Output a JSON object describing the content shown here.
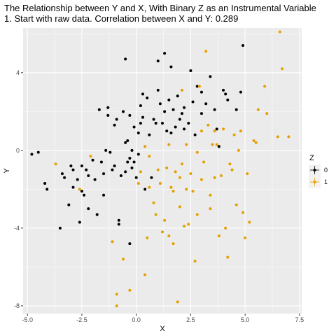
{
  "chart_data": {
    "type": "scatter",
    "title": "The Relationship between Y and X, With Binary Z as an Instrumental Variable",
    "subtitle": "1. Start with raw data. Correlation between X and Y: 0.289",
    "xlabel": "X",
    "ylabel": "Y",
    "xlim": [
      -5.2,
      7.6
    ],
    "ylim": [
      -8.4,
      6.3
    ],
    "x_ticks": [
      -5.0,
      -2.5,
      0.0,
      2.5,
      5.0,
      7.5
    ],
    "x_tick_labels": [
      "-5.0",
      "-2.5",
      "0.0",
      "2.5",
      "5.0",
      "7.5"
    ],
    "y_ticks": [
      -8,
      -4,
      0,
      4
    ],
    "y_tick_labels": [
      "-8",
      "-4",
      "0",
      "4"
    ],
    "grid": true,
    "legend": {
      "title": "Z",
      "position": "right"
    },
    "series": [
      {
        "name": "0",
        "color": "#000000",
        "points": [
          [
            -4.8,
            -0.2
          ],
          [
            -4.5,
            -0.1
          ],
          [
            -4.2,
            -1.7
          ],
          [
            -4.1,
            -2.0
          ],
          [
            -3.5,
            -4.0
          ],
          [
            -3.4,
            -1.2
          ],
          [
            -3.3,
            -1.4
          ],
          [
            -3.1,
            -2.8
          ],
          [
            -3.0,
            -0.8
          ],
          [
            -2.9,
            -1.0
          ],
          [
            -2.9,
            -1.9
          ],
          [
            -2.7,
            -1.5
          ],
          [
            -2.6,
            -3.7
          ],
          [
            -2.5,
            -0.8
          ],
          [
            -2.5,
            -2.1
          ],
          [
            -2.4,
            -2.3
          ],
          [
            -2.3,
            -1.0
          ],
          [
            -2.2,
            -1.3
          ],
          [
            -2.2,
            -3.0
          ],
          [
            -2.0,
            -0.5
          ],
          [
            -1.9,
            -1.5
          ],
          [
            -1.8,
            -3.3
          ],
          [
            -1.7,
            2.1
          ],
          [
            -1.6,
            -0.6
          ],
          [
            -1.5,
            -2.3
          ],
          [
            -1.5,
            -1.2
          ],
          [
            -1.4,
            0.0
          ],
          [
            -1.3,
            2.2
          ],
          [
            -1.3,
            1.8
          ],
          [
            -1.2,
            -0.1
          ],
          [
            -1.1,
            -1.0
          ],
          [
            -1.0,
            1.3
          ],
          [
            -1.0,
            -0.8
          ],
          [
            -0.9,
            1.6
          ],
          [
            -0.8,
            -3.6
          ],
          [
            -0.8,
            -3.8
          ],
          [
            -0.7,
            -1.3
          ],
          [
            -0.6,
            2.0
          ],
          [
            -0.5,
            4.7
          ],
          [
            -0.5,
            0.4
          ],
          [
            -0.5,
            -1.1
          ],
          [
            -0.4,
            0.5
          ],
          [
            -0.4,
            -0.6
          ],
          [
            -0.3,
            1.8
          ],
          [
            -0.3,
            -0.4
          ],
          [
            -0.3,
            -4.8
          ],
          [
            -0.2,
            0.0
          ],
          [
            -0.2,
            -0.9
          ],
          [
            -0.1,
            1.2
          ],
          [
            -0.1,
            -0.6
          ],
          [
            0.0,
            -1.4
          ],
          [
            0.1,
            0.9
          ],
          [
            0.1,
            -0.2
          ],
          [
            0.2,
            1.4
          ],
          [
            0.2,
            2.3
          ],
          [
            0.3,
            1.7
          ],
          [
            0.3,
            2.9
          ],
          [
            0.4,
            -2.0
          ],
          [
            0.5,
            2.7
          ],
          [
            0.6,
            0.8
          ],
          [
            0.7,
            -1.4
          ],
          [
            0.8,
            1.6
          ],
          [
            0.9,
            1.4
          ],
          [
            1.0,
            3.1
          ],
          [
            1.0,
            4.6
          ],
          [
            1.1,
            2.4
          ],
          [
            1.2,
            1.4
          ],
          [
            1.3,
            2.0
          ],
          [
            1.3,
            5.0
          ],
          [
            1.4,
            1.0
          ],
          [
            1.5,
            2.6
          ],
          [
            1.6,
            0.9
          ],
          [
            1.6,
            4.3
          ],
          [
            1.7,
            2.1
          ],
          [
            1.8,
            1.2
          ],
          [
            1.9,
            2.8
          ],
          [
            2.0,
            1.6
          ],
          [
            2.1,
            1.9
          ],
          [
            2.2,
            2.2
          ],
          [
            2.2,
            1.1
          ],
          [
            2.4,
            1.4
          ],
          [
            2.5,
            4.1
          ],
          [
            2.6,
            2.5
          ],
          [
            2.7,
            0.8
          ],
          [
            2.8,
            3.3
          ],
          [
            3.0,
            1.9
          ],
          [
            3.2,
            2.4
          ],
          [
            3.4,
            3.8
          ],
          [
            3.6,
            2.1
          ],
          [
            3.7,
            1.1
          ],
          [
            3.8,
            0.2
          ],
          [
            4.0,
            3.1
          ],
          [
            4.2,
            2.6
          ],
          [
            4.6,
            2.1
          ],
          [
            4.8,
            3.0
          ],
          [
            4.9,
            5.4
          ],
          [
            4.1,
            2.9
          ],
          [
            3.0,
            3.0
          ]
        ]
      },
      {
        "name": "1",
        "color": "#E69F00",
        "points": [
          [
            -3.7,
            -0.7
          ],
          [
            -2.6,
            -2.0
          ],
          [
            -2.1,
            -0.3
          ],
          [
            -1.1,
            -4.7
          ],
          [
            -0.9,
            -7.4
          ],
          [
            -0.9,
            -8.0
          ],
          [
            -0.6,
            -5.6
          ],
          [
            -0.3,
            -7.2
          ],
          [
            0.1,
            -1.7
          ],
          [
            0.2,
            -1.1
          ],
          [
            0.4,
            -6.4
          ],
          [
            0.4,
            0.2
          ],
          [
            0.5,
            -4.5
          ],
          [
            0.6,
            -0.3
          ],
          [
            0.6,
            -1.9
          ],
          [
            0.8,
            -2.7
          ],
          [
            0.9,
            -3.3
          ],
          [
            1.0,
            -1.0
          ],
          [
            1.1,
            -1.7
          ],
          [
            1.2,
            -4.2
          ],
          [
            1.3,
            -3.6
          ],
          [
            1.4,
            -0.9
          ],
          [
            1.5,
            0.3
          ],
          [
            1.5,
            -4.4
          ],
          [
            1.6,
            -1.9
          ],
          [
            1.7,
            -4.8
          ],
          [
            1.7,
            -2.1
          ],
          [
            1.8,
            -1.1
          ],
          [
            1.9,
            -7.8
          ],
          [
            2.0,
            -1.4
          ],
          [
            2.0,
            -2.9
          ],
          [
            2.1,
            -0.7
          ],
          [
            2.2,
            -3.9
          ],
          [
            2.3,
            0.3
          ],
          [
            2.3,
            -2.0
          ],
          [
            2.4,
            -3.8
          ],
          [
            2.5,
            -1.2
          ],
          [
            2.6,
            -2.1
          ],
          [
            2.7,
            -5.7
          ],
          [
            2.8,
            -3.3
          ],
          [
            2.8,
            -0.1
          ],
          [
            2.9,
            3.3
          ],
          [
            3.0,
            -1.5
          ],
          [
            3.0,
            1.0
          ],
          [
            3.1,
            -0.6
          ],
          [
            3.2,
            5.1
          ],
          [
            3.3,
            1.3
          ],
          [
            3.4,
            -2.3
          ],
          [
            3.4,
            -3.0
          ],
          [
            3.5,
            0.3
          ],
          [
            3.6,
            -1.4
          ],
          [
            3.7,
            0.3
          ],
          [
            3.8,
            -4.4
          ],
          [
            3.9,
            -1.3
          ],
          [
            4.0,
            1.1
          ],
          [
            4.1,
            -4.0
          ],
          [
            4.2,
            -5.5
          ],
          [
            4.3,
            -0.7
          ],
          [
            4.4,
            -1.0
          ],
          [
            4.5,
            0.8
          ],
          [
            4.6,
            -2.8
          ],
          [
            4.7,
            0.0
          ],
          [
            4.8,
            1.0
          ],
          [
            4.9,
            -3.2
          ],
          [
            5.0,
            -4.5
          ],
          [
            5.1,
            -1.2
          ],
          [
            5.2,
            -3.7
          ],
          [
            5.4,
            0.5
          ],
          [
            5.5,
            0.4
          ],
          [
            5.6,
            2.1
          ],
          [
            5.9,
            3.3
          ],
          [
            6.0,
            1.9
          ],
          [
            6.5,
            0.7
          ],
          [
            6.6,
            6.1
          ],
          [
            6.7,
            4.2
          ],
          [
            7.0,
            0.7
          ],
          [
            3.6,
            1.0
          ],
          [
            2.1,
            3.1
          ]
        ]
      }
    ]
  }
}
